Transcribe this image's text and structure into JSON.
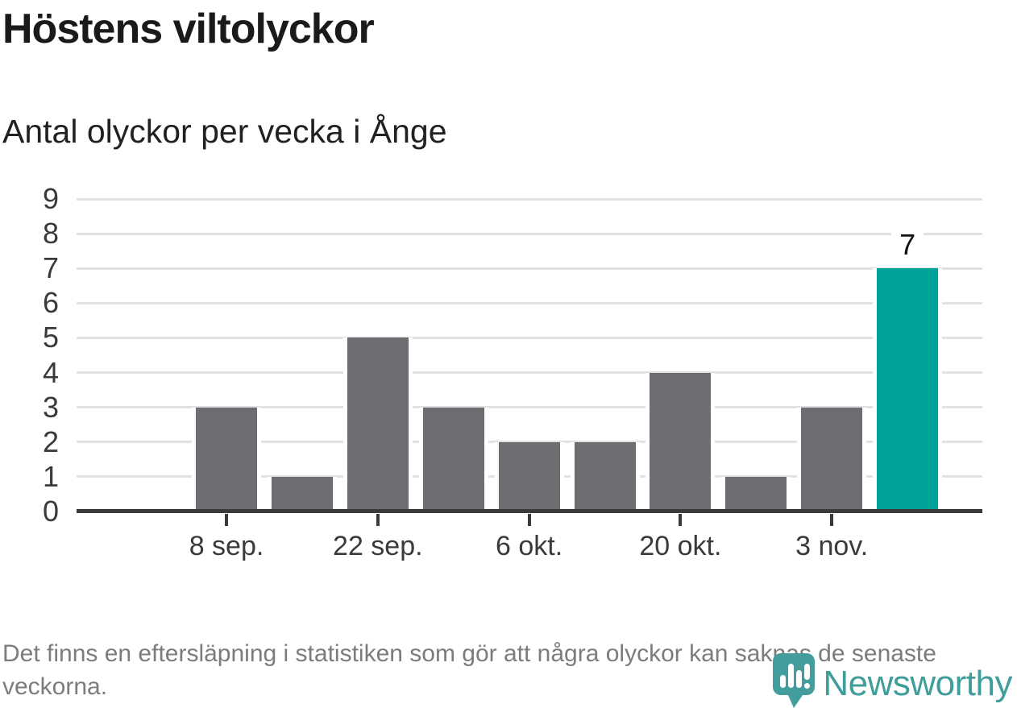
{
  "header": {
    "title": "Höstens viltolyckor",
    "subtitle": "Antal olyckor per vecka i Ånge"
  },
  "chart_data": {
    "type": "bar",
    "title": "Höstens viltolyckor",
    "subtitle": "Antal olyckor per vecka i Ånge",
    "values": [
      3,
      1,
      5,
      3,
      2,
      2,
      4,
      1,
      3,
      7
    ],
    "highlight_index": 9,
    "value_annotations": [
      {
        "bar_index": 9,
        "text": "7"
      }
    ],
    "x_ticks": [
      {
        "label": "8 sep.",
        "bar_index": 0
      },
      {
        "label": "22 sep.",
        "bar_index": 2
      },
      {
        "label": "6 okt.",
        "bar_index": 4
      },
      {
        "label": "20 okt.",
        "bar_index": 6
      },
      {
        "label": "3 nov.",
        "bar_index": 8
      }
    ],
    "y_tick_labels": [
      "0",
      "1",
      "2",
      "3",
      "4",
      "5",
      "6",
      "7",
      "8",
      "9"
    ],
    "ylim": [
      0,
      9
    ],
    "grid": "horizontal",
    "legend": "none",
    "colors": {
      "bar": "#6e6d72",
      "highlight": "#00a39a",
      "gridline": "#e1e1e1",
      "axis": "#3a3a3a"
    }
  },
  "footer": {
    "note": "Det finns en eftersläpning i statistiken som gör att några olyckor kan saknas de senaste veckorna."
  },
  "branding": {
    "logo_text": "Newsworthy",
    "logo_color": "#3f9e9a",
    "logo_icon": "newsworthy-bubble-barchart-icon"
  }
}
